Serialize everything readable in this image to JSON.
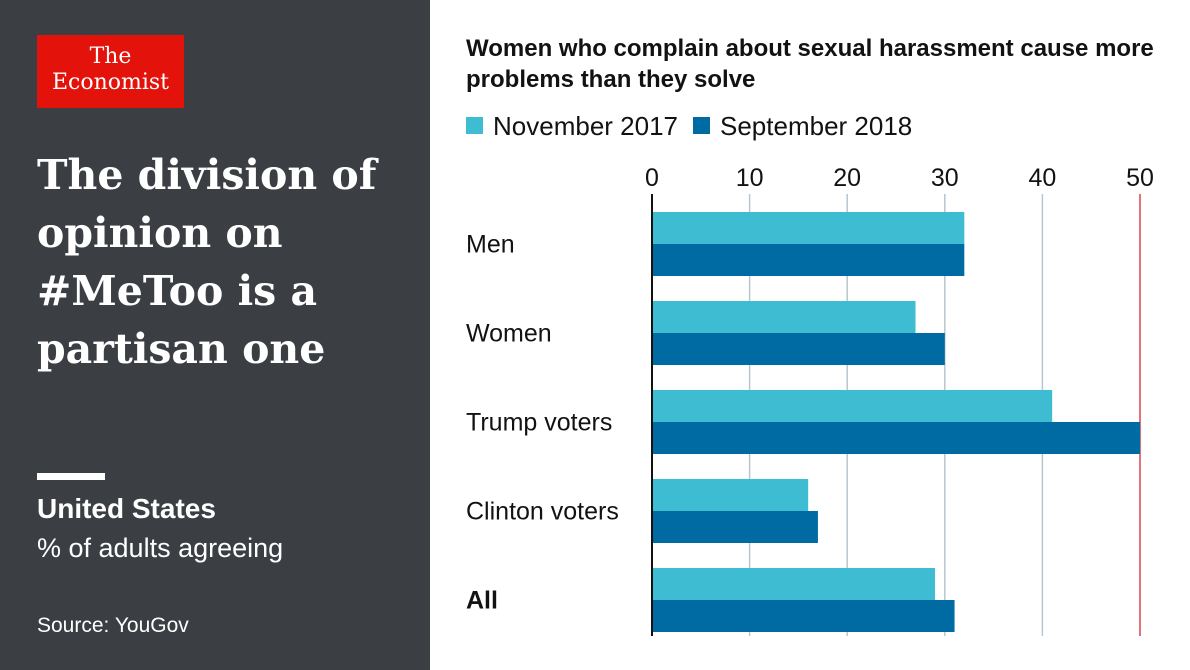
{
  "brand": {
    "line1": "The",
    "line2": "Economist",
    "color": "#e3120b"
  },
  "headline": "The division of opinion on #MeToo is a partisan one",
  "region": "United States",
  "unit": "% of adults agreeing",
  "source": "Source: YouGov",
  "colors": {
    "panel": "#3b3f43",
    "series1": "#3ebcd2",
    "series2": "#006ba2",
    "grid": "#b7c6cf",
    "highlight_line": "#db444b"
  },
  "chart_data": {
    "type": "bar",
    "orientation": "horizontal",
    "title": "Women who complain about sexual harassment cause more problems than they solve",
    "categories": [
      "Men",
      "Women",
      "Trump voters",
      "Clinton voters",
      "All"
    ],
    "series": [
      {
        "name": "November 2017",
        "values": [
          32,
          27,
          41,
          16,
          29
        ]
      },
      {
        "name": "September 2018",
        "values": [
          32,
          30,
          50,
          17,
          31
        ]
      }
    ],
    "xlim": [
      0,
      50
    ],
    "xticks": [
      0,
      10,
      20,
      30,
      40,
      50
    ],
    "xlabel": "",
    "ylabel": "",
    "grid": true,
    "legend_position": "top-left",
    "bold_categories": [
      "All"
    ]
  }
}
